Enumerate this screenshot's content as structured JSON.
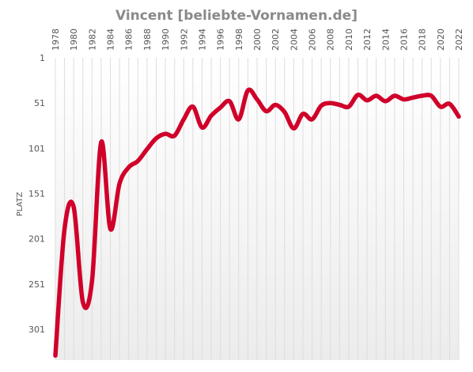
{
  "chart_data": {
    "type": "line",
    "title": "Vincent [beliebte-Vornamen.de]",
    "xlabel": "",
    "ylabel": "PLATZ",
    "x_tick_labels": [
      "1978",
      "1980",
      "1982",
      "1984",
      "1986",
      "1988",
      "1990",
      "1992",
      "1994",
      "1996",
      "1998",
      "2000",
      "2002",
      "2004",
      "2006",
      "2008",
      "2010",
      "2012",
      "2014",
      "2016",
      "2018",
      "2020",
      "2022"
    ],
    "y_tick_labels": [
      "1",
      "51",
      "101",
      "151",
      "201",
      "251",
      "301"
    ],
    "y_ticks": [
      1,
      51,
      101,
      151,
      201,
      251,
      301
    ],
    "ylim": [
      1,
      335
    ],
    "y_inverted": true,
    "xlim": [
      1978,
      2022
    ],
    "grid": true,
    "color": "#d0002a",
    "series": [
      {
        "x": [
          1978,
          1979,
          1980,
          1981,
          1982,
          1983,
          1984,
          1985,
          1986,
          1987,
          1988,
          1989,
          1990,
          1991,
          1992,
          1993,
          1994,
          1995,
          1996,
          1997,
          1998,
          1999,
          2000,
          2001,
          2002,
          2003,
          2004,
          2005,
          2006,
          2007,
          2008,
          2009,
          2010,
          2011,
          2012,
          2013,
          2014,
          2015,
          2016,
          2017,
          2018,
          2019,
          2020,
          2021,
          2022
        ],
        "y": [
          330,
          190,
          166,
          271,
          247,
          94,
          190,
          140,
          122,
          115,
          102,
          90,
          85,
          87,
          69,
          55,
          78,
          65,
          56,
          49,
          69,
          37,
          47,
          60,
          53,
          61,
          79,
          63,
          69,
          54,
          51,
          53,
          55,
          42,
          48,
          43,
          49,
          43,
          47,
          45,
          43,
          43,
          55,
          52,
          66
        ]
      }
    ]
  }
}
